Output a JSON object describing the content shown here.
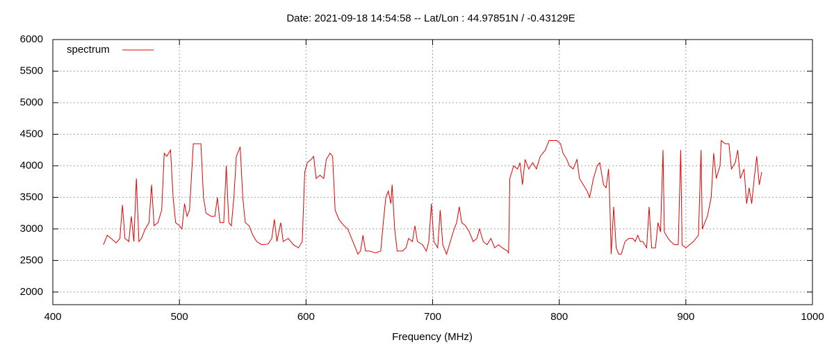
{
  "chart_data": {
    "type": "line",
    "title": "Date: 2021-09-18 14:54:58  --  Lat/Lon : 44.97851N / -0.43129E",
    "x_label": "Frequency (MHz)",
    "x": [
      440,
      443,
      446,
      450,
      453,
      455,
      457,
      460,
      462,
      464,
      466,
      468,
      470,
      473,
      476,
      478,
      480,
      483,
      486,
      488,
      490,
      493,
      495,
      497,
      500,
      502,
      504,
      506,
      508,
      511,
      514,
      517,
      519,
      521,
      525,
      528,
      530,
      532,
      535,
      537,
      539,
      541,
      543,
      545,
      548,
      550,
      552,
      555,
      558,
      561,
      565,
      570,
      573,
      575,
      577,
      580,
      582,
      586,
      590,
      594,
      597,
      599,
      601,
      604,
      606,
      608,
      611,
      614,
      616,
      619,
      621,
      623,
      626,
      630,
      633,
      636,
      639,
      641,
      643,
      645,
      647,
      650,
      655,
      659,
      661,
      663,
      665,
      667,
      668,
      670,
      672,
      676,
      679,
      681,
      684,
      686,
      688,
      692,
      695,
      697,
      699,
      701,
      704,
      706,
      708,
      711,
      714,
      717,
      719,
      721,
      723,
      726,
      729,
      732,
      735,
      737,
      740,
      743,
      746,
      749,
      752,
      755,
      759,
      760,
      761,
      764,
      767,
      769,
      771,
      773,
      776,
      779,
      782,
      785,
      789,
      792,
      798,
      801,
      803,
      806,
      808,
      811,
      814,
      816,
      819,
      822,
      824,
      827,
      830,
      832,
      835,
      837,
      839,
      840,
      841,
      843,
      845,
      847,
      849,
      852,
      855,
      858,
      860,
      862,
      864,
      866,
      869,
      871,
      873,
      876,
      878,
      880,
      882,
      883,
      886,
      888,
      891,
      894,
      896,
      897,
      900,
      903,
      906,
      910,
      912,
      913,
      917,
      920,
      922,
      924,
      927,
      928,
      931,
      934,
      936,
      939,
      941,
      943,
      946,
      948,
      950,
      952,
      954,
      956,
      958,
      960
    ],
    "series": [
      {
        "name": "spectrum",
        "color": "#e00000",
        "values": [
          2750,
          2900,
          2850,
          2780,
          2850,
          3380,
          2850,
          2800,
          3200,
          2800,
          3800,
          2800,
          2850,
          3000,
          3100,
          3700,
          3050,
          3100,
          3300,
          4200,
          4150,
          4250,
          3500,
          3100,
          3050,
          3000,
          3400,
          3200,
          3300,
          4350,
          4350,
          4350,
          3500,
          3250,
          3200,
          3200,
          3500,
          3100,
          3100,
          4000,
          3100,
          3050,
          3500,
          4150,
          4300,
          3500,
          3100,
          3050,
          2900,
          2800,
          2750,
          2760,
          2850,
          3150,
          2800,
          3100,
          2800,
          2850,
          2750,
          2700,
          2800,
          3900,
          4050,
          4100,
          4150,
          3800,
          3850,
          3800,
          4100,
          4200,
          4150,
          3300,
          3150,
          3050,
          3000,
          2850,
          2700,
          2600,
          2650,
          2900,
          2650,
          2650,
          2620,
          2650,
          3100,
          3500,
          3600,
          3400,
          3700,
          3000,
          2650,
          2650,
          2700,
          2850,
          2800,
          3050,
          2800,
          2750,
          2650,
          2800,
          3400,
          2800,
          2700,
          3300,
          2750,
          2600,
          2800,
          3000,
          3100,
          3350,
          3100,
          3050,
          2950,
          2800,
          2850,
          3000,
          2800,
          2750,
          2850,
          2700,
          2750,
          2700,
          2650,
          2620,
          3800,
          4000,
          3950,
          4050,
          3700,
          4100,
          3950,
          4050,
          3950,
          4150,
          4250,
          4400,
          4400,
          4350,
          4200,
          4100,
          4000,
          3950,
          4100,
          3800,
          3700,
          3600,
          3500,
          3800,
          4000,
          4050,
          3700,
          3650,
          3950,
          3400,
          2600,
          3350,
          2700,
          2600,
          2600,
          2800,
          2850,
          2850,
          2800,
          2900,
          2800,
          2800,
          2700,
          3350,
          2700,
          2700,
          3100,
          2950,
          4250,
          2950,
          2850,
          2800,
          2750,
          2750,
          4250,
          2750,
          2700,
          2750,
          2800,
          2900,
          4250,
          3000,
          3200,
          3500,
          4200,
          3800,
          4000,
          4400,
          4350,
          4350,
          3950,
          4050,
          4250,
          3800,
          3950,
          3400,
          3650,
          3400,
          3800,
          4150,
          3700,
          3900
        ]
      }
    ],
    "xlim": [
      400,
      1000
    ],
    "xticks": [
      400,
      500,
      600,
      700,
      800,
      900,
      1000
    ],
    "ylim": [
      1800,
      6000
    ],
    "yticks": [
      2000,
      2500,
      3000,
      3500,
      4000,
      4500,
      5000,
      5500,
      6000
    ],
    "grid": true,
    "legend": "top-left"
  }
}
